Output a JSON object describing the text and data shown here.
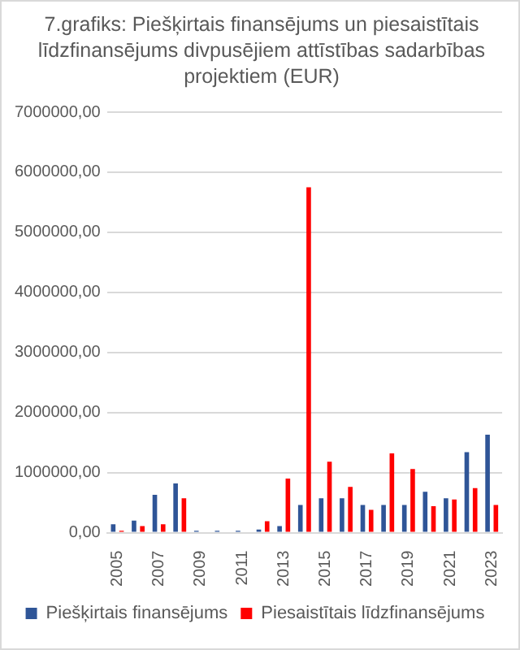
{
  "chart_data": {
    "type": "bar",
    "title": "7.grafiks: Piešķirtais finansējums un piesaistītais līdzfinansējums divpusējiem attīstības sadarbības projektiem (EUR)",
    "categories": [
      "2005",
      null,
      "2007",
      null,
      "2009",
      null,
      "2011",
      null,
      "2013",
      null,
      "2015",
      null,
      "2017",
      null,
      "2019",
      null,
      "2021",
      null,
      "2023"
    ],
    "series": [
      {
        "name": "Piešķirtais finansējums",
        "color": "#2f5597",
        "values": [
          140000,
          200000,
          630000,
          820000,
          30000,
          30000,
          30000,
          50000,
          110000,
          460000,
          570000,
          570000,
          460000,
          460000,
          460000,
          680000,
          570000,
          1340000,
          1630000
        ]
      },
      {
        "name": "Piesaistītais līdzfinansējums",
        "color": "#ff0000",
        "values": [
          30000,
          110000,
          140000,
          570000,
          0,
          0,
          0,
          190000,
          900000,
          5750000,
          1180000,
          760000,
          380000,
          1320000,
          1060000,
          440000,
          550000,
          740000,
          460000
        ]
      }
    ],
    "ylim": [
      0,
      7000000
    ],
    "yticks": [
      {
        "value": 0,
        "label": "0,00"
      },
      {
        "value": 1000000,
        "label": "1000000,00"
      },
      {
        "value": 2000000,
        "label": "2000000,00"
      },
      {
        "value": 3000000,
        "label": "3000000,00"
      },
      {
        "value": 4000000,
        "label": "4000000,00"
      },
      {
        "value": 5000000,
        "label": "5000000,00"
      },
      {
        "value": 6000000,
        "label": "6000000,00"
      },
      {
        "value": 7000000,
        "label": "7000000,00"
      }
    ],
    "grid": "y",
    "legend": "bottom"
  }
}
